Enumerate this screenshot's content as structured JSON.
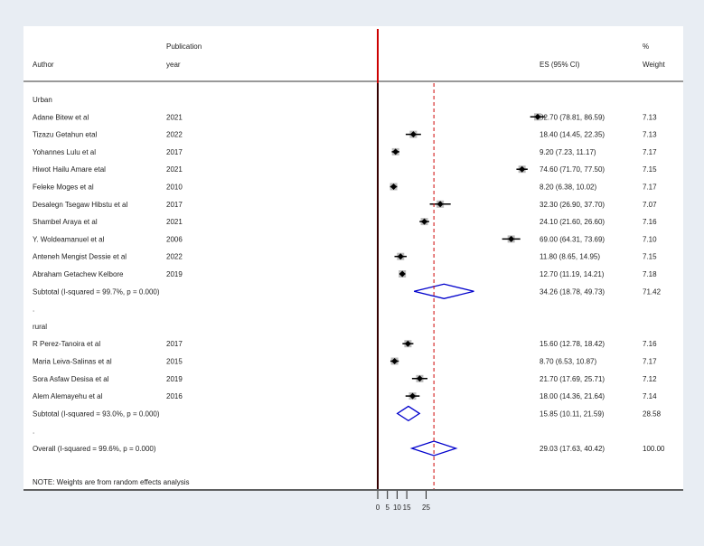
{
  "chart_data": {
    "type": "forest",
    "headers": {
      "author": "Author",
      "year_line1": "Publication",
      "year_line2": "year",
      "es": "ES (95% CI)",
      "weight_line1": "%",
      "weight_line2": "Weight"
    },
    "x_ticks": [
      "0",
      "5",
      "10",
      "15",
      "25"
    ],
    "x_tick_values": [
      0,
      5,
      10,
      15,
      25
    ],
    "overall_line": 29.03,
    "reference_line": 0,
    "rows": [
      {
        "type": "group",
        "label": "Urban"
      },
      {
        "type": "study",
        "author": "Adane Bitew et al",
        "year": "2021",
        "es": 82.7,
        "lo": 78.81,
        "hi": 86.59,
        "es_text": "82.70 (78.81, 86.59)",
        "weight": "7.13"
      },
      {
        "type": "study",
        "author": "Tizazu Getahun etal",
        "year": "2022",
        "es": 18.4,
        "lo": 14.45,
        "hi": 22.35,
        "es_text": "18.40 (14.45, 22.35)",
        "weight": "7.13"
      },
      {
        "type": "study",
        "author": "Yohannes Lulu et al",
        "year": "2017",
        "es": 9.2,
        "lo": 7.23,
        "hi": 11.17,
        "es_text": "9.20 (7.23, 11.17)",
        "weight": "7.17"
      },
      {
        "type": "study",
        "author": "Hiwot Hailu Amare etal",
        "year": "2021",
        "es": 74.6,
        "lo": 71.7,
        "hi": 77.5,
        "es_text": "74.60 (71.70, 77.50)",
        "weight": "7.15"
      },
      {
        "type": "study",
        "author": "Feleke Moges et al",
        "year": "2010",
        "es": 8.2,
        "lo": 6.38,
        "hi": 10.02,
        "es_text": "8.20 (6.38, 10.02)",
        "weight": "7.17"
      },
      {
        "type": "study",
        "author": "Desalegn Tsegaw Hibstu et al",
        "year": "2017",
        "es": 32.3,
        "lo": 26.9,
        "hi": 37.7,
        "es_text": "32.30 (26.90, 37.70)",
        "weight": "7.07"
      },
      {
        "type": "study",
        "author": "Shambel Araya et al",
        "year": "2021",
        "es": 24.1,
        "lo": 21.6,
        "hi": 26.6,
        "es_text": "24.10 (21.60, 26.60)",
        "weight": "7.16"
      },
      {
        "type": "study",
        "author": "Y. Woldeamanuel et al",
        "year": "2006",
        "es": 69.0,
        "lo": 64.31,
        "hi": 73.69,
        "es_text": "69.00 (64.31, 73.69)",
        "weight": "7.10"
      },
      {
        "type": "study",
        "author": "Anteneh Mengist Dessie et al",
        "year": "2022",
        "es": 11.8,
        "lo": 8.65,
        "hi": 14.95,
        "es_text": "11.80 (8.65, 14.95)",
        "weight": "7.15"
      },
      {
        "type": "study",
        "author": "Abraham Getachew Kelbore",
        "year": "2019",
        "es": 12.7,
        "lo": 11.19,
        "hi": 14.21,
        "es_text": "12.70 (11.19, 14.21)",
        "weight": "7.18"
      },
      {
        "type": "subtotal",
        "label": "Subtotal  (I-squared = 99.7%, p = 0.000)",
        "es": 34.26,
        "lo": 18.78,
        "hi": 49.73,
        "es_text": "34.26 (18.78, 49.73)",
        "weight": "71.42"
      },
      {
        "type": "spacer",
        "label": "."
      },
      {
        "type": "group",
        "label": "rural"
      },
      {
        "type": "study",
        "author": "R Perez-Tanoira  et al",
        "year": "2017",
        "es": 15.6,
        "lo": 12.78,
        "hi": 18.42,
        "es_text": "15.60 (12.78, 18.42)",
        "weight": "7.16"
      },
      {
        "type": "study",
        "author": "Maria Leiva-Salinas et al",
        "year": "2015",
        "es": 8.7,
        "lo": 6.53,
        "hi": 10.87,
        "es_text": "8.70 (6.53, 10.87)",
        "weight": "7.17"
      },
      {
        "type": "study",
        "author": "Sora Asfaw Desisa et al",
        "year": "2019",
        "es": 21.7,
        "lo": 17.69,
        "hi": 25.71,
        "es_text": "21.70 (17.69, 25.71)",
        "weight": "7.12"
      },
      {
        "type": "study",
        "author": "Alem Alemayehu et al",
        "year": "2016",
        "es": 18.0,
        "lo": 14.36,
        "hi": 21.64,
        "es_text": "18.00 (14.36, 21.64)",
        "weight": "7.14"
      },
      {
        "type": "subtotal",
        "label": "Subtotal  (I-squared = 93.0%, p = 0.000)",
        "es": 15.85,
        "lo": 10.11,
        "hi": 21.59,
        "es_text": "15.85 (10.11, 21.59)",
        "weight": "28.58"
      },
      {
        "type": "spacer",
        "label": "."
      },
      {
        "type": "overall",
        "label": "Overall  (I-squared = 99.6%, p = 0.000)",
        "es": 29.03,
        "lo": 17.63,
        "hi": 40.42,
        "es_text": "29.03 (17.63, 40.42)",
        "weight": "100.00"
      }
    ],
    "note": "NOTE: Weights are from random effects analysis",
    "colors": {
      "background": "#e8edf3",
      "panel": "#ffffff",
      "reference": "#cc0000",
      "overall_line": "#cc0000",
      "diamond": "#0000cc",
      "marker": "#000000",
      "weight_box": "#bbbbbb"
    }
  }
}
